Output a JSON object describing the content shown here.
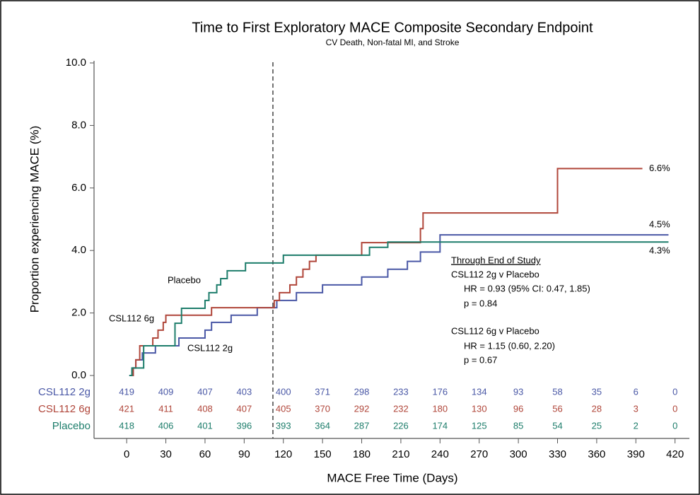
{
  "chart_data": {
    "type": "line",
    "step": "post",
    "title": "Time to First Exploratory MACE Composite Secondary Endpoint",
    "subtitle": "CV Death, Non-fatal MI, and Stroke",
    "x_label": "MACE Free Time (Days)",
    "y_label": "Proportion experiencing MACE (%)",
    "xlim": [
      -25,
      431
    ],
    "ylim": [
      0,
      10
    ],
    "xticks": [
      0,
      30,
      60,
      90,
      120,
      150,
      180,
      210,
      240,
      270,
      300,
      330,
      360,
      390,
      420
    ],
    "yticks": [
      {
        "value": 0,
        "label": "0.0"
      },
      {
        "value": 2,
        "label": "2.0"
      },
      {
        "value": 4,
        "label": "4.0"
      },
      {
        "value": 6,
        "label": "6.0"
      },
      {
        "value": 8,
        "label": "8.0"
      },
      {
        "value": 10,
        "label": "10.0"
      }
    ],
    "vline": 112,
    "series": [
      {
        "name": "CSL112 2g",
        "color": "#4a58a6",
        "x": [
          2,
          5,
          7,
          12,
          22,
          40,
          60,
          65,
          80,
          100,
          115,
          130,
          150,
          180,
          200,
          215,
          225,
          240,
          415
        ],
        "values": [
          0,
          0.24,
          0.5,
          0.72,
          0.95,
          1.2,
          1.45,
          1.7,
          1.93,
          2.17,
          2.4,
          2.65,
          2.9,
          3.15,
          3.4,
          3.65,
          3.95,
          4.5,
          4.5
        ],
        "end_label": "4.5%",
        "at_risk": [
          419,
          409,
          407,
          403,
          400,
          371,
          298,
          233,
          176,
          134,
          93,
          58,
          35,
          6,
          0
        ]
      },
      {
        "name": "CSL112 6g",
        "color": "#b0463a",
        "x": [
          3,
          5,
          7,
          10,
          20,
          24,
          28,
          30,
          65,
          113,
          117,
          125,
          130,
          135,
          140,
          145,
          180,
          225,
          227,
          330,
          395
        ],
        "values": [
          0,
          0.24,
          0.5,
          0.95,
          1.2,
          1.45,
          1.7,
          1.93,
          2.17,
          2.4,
          2.65,
          2.9,
          3.15,
          3.4,
          3.65,
          3.85,
          4.25,
          4.7,
          5.2,
          6.62,
          6.62
        ],
        "end_label": "6.6%",
        "at_risk": [
          421,
          411,
          408,
          407,
          405,
          370,
          292,
          232,
          180,
          130,
          96,
          56,
          28,
          3,
          0
        ]
      },
      {
        "name": "Placebo",
        "color": "#1d7d6b",
        "x": [
          2,
          4,
          13,
          37,
          42,
          60,
          63,
          69,
          72,
          77,
          91,
          120,
          186,
          200,
          415
        ],
        "values": [
          0,
          0.24,
          0.95,
          1.67,
          2.15,
          2.4,
          2.65,
          2.9,
          3.1,
          3.35,
          3.6,
          3.85,
          4.1,
          4.27,
          4.27
        ],
        "end_label": "4.3%",
        "at_risk": [
          418,
          406,
          401,
          396,
          393,
          364,
          287,
          226,
          174,
          125,
          85,
          54,
          25,
          2,
          0
        ]
      }
    ],
    "annotations": [
      "Through End of Study",
      "CSL112 2g v Placebo",
      "HR = 0.93 (95% CI: 0.47, 1.85)",
      "p = 0.84",
      "CSL112 6g v Placebo",
      "HR = 1.15 (0.60, 2.20)",
      "p = 0.67"
    ]
  }
}
